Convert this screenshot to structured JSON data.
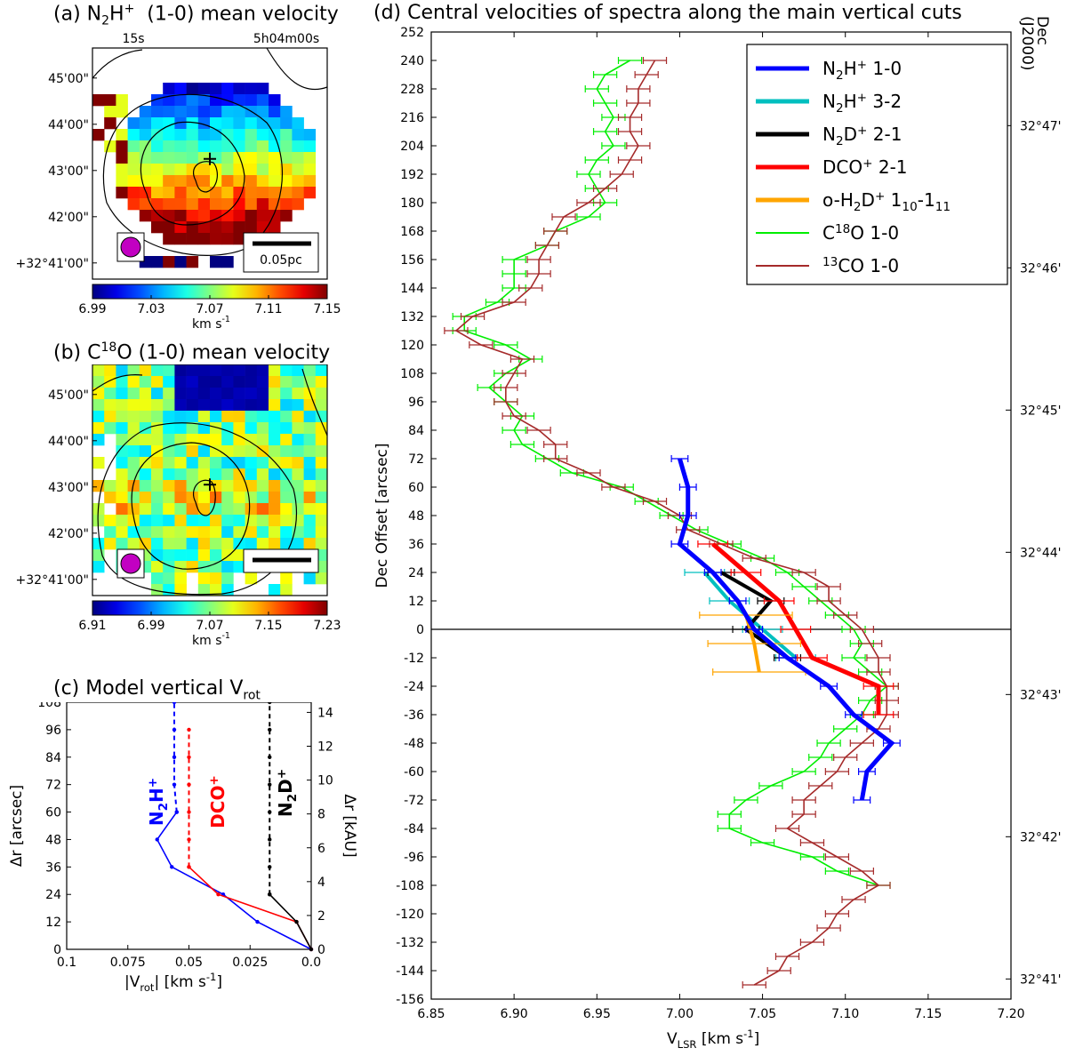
{
  "panel_a": {
    "title_prefix": "(a) N",
    "title_sub": "2",
    "title_mid": "H",
    "title_sup": "+",
    "title_suffix": "  (1-0) mean velocity",
    "ra_labels": [
      "15s",
      "5h04m00s"
    ],
    "dec_labels": [
      "45'00\"",
      "44'00\"",
      "43'00\"",
      "42'00\"",
      "+32°41'00\""
    ],
    "colorbar_ticks": [
      "6.99",
      "7.03",
      "7.07",
      "7.11",
      "7.15"
    ],
    "colorbar_unit": "km s",
    "colorbar_unit_sup": "-1",
    "scalebar_label": "0.05pc",
    "colors": {
      "beam": "#c200c2"
    }
  },
  "panel_b": {
    "title_prefix": "(b) C",
    "title_sup": "18",
    "title_suffix": "O (1-0) mean velocity",
    "dec_labels": [
      "45'00\"",
      "44'00\"",
      "43'00\"",
      "42'00\"",
      "+32°41'00\""
    ],
    "colorbar_ticks": [
      "6.91",
      "6.99",
      "7.07",
      "7.15",
      "7.23"
    ],
    "colorbar_unit": "km s",
    "colorbar_unit_sup": "-1"
  },
  "chart_data": [
    {
      "id": "c",
      "type": "line",
      "title": "(c) Model vertical V",
      "title_sub": "rot",
      "xlabel": "|V",
      "xlabel_sub": "rot",
      "xlabel_suffix": "| [km s",
      "xlabel_sup": "-1",
      "xlabel_end": "]",
      "ylabel": "Δr [arcsec]",
      "y2label": "Δr [kAU]",
      "xlim": [
        0.1,
        0.0
      ],
      "ylim": [
        0,
        108
      ],
      "xticks": [
        0.1,
        0.075,
        0.05,
        0.025,
        0.0
      ],
      "xtick_labels": [
        "0.1",
        "0.075",
        "0.05",
        "0.025",
        "0.0"
      ],
      "yticks": [
        0,
        12,
        24,
        36,
        48,
        60,
        72,
        84,
        96,
        108
      ],
      "y2ticks": [
        0,
        2,
        4,
        6,
        8,
        10,
        12,
        14
      ],
      "series": [
        {
          "name": "N2H+",
          "label_main": "N",
          "label_sub": "2",
          "label_h": "H",
          "label_sup": "+",
          "color": "#0000ff",
          "solid": [
            [
              0,
              0.0
            ],
            [
              12,
              0.022
            ],
            [
              24,
              0.036
            ],
            [
              36,
              0.057
            ],
            [
              48,
              0.063
            ],
            [
              60,
              0.055
            ]
          ],
          "dashed": [
            [
              60,
              0.055
            ],
            [
              72,
              0.056
            ],
            [
              84,
              0.056
            ],
            [
              96,
              0.056
            ],
            [
              108,
              0.056
            ]
          ]
        },
        {
          "name": "DCO+",
          "label_main": "DCO",
          "label_sup": "+",
          "color": "#ff0000",
          "solid": [
            [
              0,
              0.0
            ],
            [
              12,
              0.006
            ],
            [
              24,
              0.038
            ],
            [
              36,
              0.05
            ]
          ],
          "dashed": [
            [
              36,
              0.05
            ],
            [
              48,
              0.05
            ],
            [
              60,
              0.05
            ],
            [
              72,
              0.05
            ],
            [
              84,
              0.05
            ],
            [
              96,
              0.05
            ]
          ]
        },
        {
          "name": "N2D+",
          "label_main": "N",
          "label_sub": "2",
          "label_h": "D",
          "label_sup": "+",
          "color": "#000000",
          "solid": [
            [
              0,
              0.0
            ],
            [
              12,
              0.006
            ],
            [
              24,
              0.017
            ]
          ],
          "dashed": [
            [
              24,
              0.017
            ],
            [
              36,
              0.017
            ],
            [
              48,
              0.017
            ],
            [
              60,
              0.017
            ],
            [
              72,
              0.017
            ],
            [
              84,
              0.017
            ],
            [
              96,
              0.017
            ],
            [
              108,
              0.017
            ]
          ]
        }
      ]
    },
    {
      "id": "d",
      "type": "line",
      "title": "(d) Central velocities of spectra along the main vertical cuts",
      "xlabel": "V",
      "xlabel_sub": "LSR",
      "xlabel_suffix": " [km s",
      "xlabel_sup": "-1",
      "xlabel_end": "]",
      "ylabel": "Dec Offset [arcsec]",
      "y2label": "Dec",
      "y2label_2": "(J2000)",
      "xlim": [
        6.85,
        7.2
      ],
      "ylim": [
        -156,
        252
      ],
      "xticks": [
        6.85,
        6.9,
        6.95,
        7.0,
        7.05,
        7.1,
        7.15,
        7.2
      ],
      "xtick_labels": [
        "6.85",
        "6.90",
        "6.95",
        "7.00",
        "7.05",
        "7.10",
        "7.15",
        "7.20"
      ],
      "yticks": [
        -156,
        -144,
        -132,
        -120,
        -108,
        -96,
        -84,
        -72,
        -60,
        -48,
        -36,
        -24,
        -12,
        0,
        12,
        24,
        36,
        48,
        60,
        72,
        84,
        96,
        108,
        120,
        132,
        144,
        156,
        168,
        180,
        192,
        204,
        216,
        228,
        240,
        252
      ],
      "y2ticks": [
        {
          "label": "32°47'",
          "value": 212.5
        },
        {
          "label": "32°46'",
          "value": 152.5
        },
        {
          "label": "32°45'",
          "value": 92.5
        },
        {
          "label": "32°44'",
          "value": 32.5
        },
        {
          "label": "32°43'",
          "value": -27.5
        },
        {
          "label": "32°42'",
          "value": -87.5
        },
        {
          "label": "32°41'",
          "value": -147.5
        }
      ],
      "series": [
        {
          "name": "C18O 1-0",
          "legend_main": "C",
          "legend_sup": "18",
          "legend_rest": "O 1-0",
          "color": "#00ee00",
          "width": 1.6,
          "err": 0.007,
          "points": [
            [
              6.97,
              240
            ],
            [
              6.955,
              234
            ],
            [
              6.95,
              228
            ],
            [
              6.955,
              222
            ],
            [
              6.96,
              216
            ],
            [
              6.955,
              210
            ],
            [
              6.96,
              204
            ],
            [
              6.95,
              198
            ],
            [
              6.945,
              192
            ],
            [
              6.95,
              186
            ],
            [
              6.955,
              180
            ],
            [
              6.945,
              174
            ],
            [
              6.925,
              168
            ],
            [
              6.92,
              162
            ],
            [
              6.9,
              156
            ],
            [
              6.9,
              150
            ],
            [
              6.9,
              144
            ],
            [
              6.89,
              138
            ],
            [
              6.87,
              132
            ],
            [
              6.87,
              126
            ],
            [
              6.895,
              120
            ],
            [
              6.91,
              114
            ],
            [
              6.895,
              108
            ],
            [
              6.885,
              102
            ],
            [
              6.895,
              96
            ],
            [
              6.905,
              90
            ],
            [
              6.9,
              84
            ],
            [
              6.905,
              78
            ],
            [
              6.92,
              72
            ],
            [
              6.935,
              66
            ],
            [
              6.965,
              60
            ],
            [
              6.98,
              54
            ],
            [
              6.995,
              48
            ],
            [
              7.01,
              42
            ],
            [
              7.03,
              36
            ],
            [
              7.05,
              30
            ],
            [
              7.065,
              24
            ],
            [
              7.075,
              18
            ],
            [
              7.085,
              12
            ],
            [
              7.095,
              6
            ],
            [
              7.105,
              0
            ],
            [
              7.11,
              -6
            ],
            [
              7.105,
              -12
            ],
            [
              7.115,
              -18
            ],
            [
              7.125,
              -24
            ],
            [
              7.115,
              -30
            ],
            [
              7.11,
              -36
            ],
            [
              7.1,
              -42
            ],
            [
              7.09,
              -48
            ],
            [
              7.085,
              -54
            ],
            [
              7.075,
              -60
            ],
            [
              7.055,
              -66
            ],
            [
              7.04,
              -72
            ],
            [
              7.03,
              -78
            ],
            [
              7.03,
              -84
            ],
            [
              7.05,
              -90
            ],
            [
              7.08,
              -96
            ],
            [
              7.095,
              -102
            ],
            [
              7.12,
              -108
            ]
          ]
        },
        {
          "name": "13CO 1-0",
          "legend_main": "",
          "legend_sup": "13",
          "legend_rest": "CO 1-0",
          "color": "#a52a2a",
          "width": 1.6,
          "err": 0.007,
          "points": [
            [
              6.985,
              240
            ],
            [
              6.98,
              234
            ],
            [
              6.975,
              228
            ],
            [
              6.975,
              222
            ],
            [
              6.97,
              216
            ],
            [
              6.97,
              210
            ],
            [
              6.975,
              204
            ],
            [
              6.97,
              198
            ],
            [
              6.965,
              192
            ],
            [
              6.955,
              186
            ],
            [
              6.945,
              180
            ],
            [
              6.93,
              174
            ],
            [
              6.925,
              168
            ],
            [
              6.92,
              162
            ],
            [
              6.915,
              156
            ],
            [
              6.915,
              150
            ],
            [
              6.91,
              144
            ],
            [
              6.9,
              138
            ],
            [
              6.875,
              132
            ],
            [
              6.865,
              126
            ],
            [
              6.88,
              120
            ],
            [
              6.905,
              114
            ],
            [
              6.9,
              108
            ],
            [
              6.895,
              102
            ],
            [
              6.895,
              96
            ],
            [
              6.9,
              90
            ],
            [
              6.915,
              84
            ],
            [
              6.925,
              78
            ],
            [
              6.925,
              72
            ],
            [
              6.945,
              66
            ],
            [
              6.96,
              60
            ],
            [
              6.985,
              54
            ],
            [
              7.0,
              48
            ],
            [
              7.005,
              42
            ],
            [
              7.025,
              36
            ],
            [
              7.045,
              30
            ],
            [
              7.075,
              24
            ],
            [
              7.09,
              18
            ],
            [
              7.09,
              12
            ],
            [
              7.1,
              6
            ],
            [
              7.11,
              0
            ],
            [
              7.115,
              -6
            ],
            [
              7.12,
              -12
            ],
            [
              7.12,
              -18
            ],
            [
              7.125,
              -24
            ],
            [
              7.125,
              -30
            ],
            [
              7.125,
              -36
            ],
            [
              7.12,
              -42
            ],
            [
              7.11,
              -48
            ],
            [
              7.1,
              -54
            ],
            [
              7.095,
              -60
            ],
            [
              7.085,
              -66
            ],
            [
              7.075,
              -72
            ],
            [
              7.075,
              -78
            ],
            [
              7.065,
              -84
            ],
            [
              7.08,
              -90
            ],
            [
              7.095,
              -96
            ],
            [
              7.11,
              -102
            ],
            [
              7.12,
              -108
            ],
            [
              7.105,
              -114
            ],
            [
              7.095,
              -120
            ],
            [
              7.09,
              -126
            ],
            [
              7.08,
              -132
            ],
            [
              7.065,
              -138
            ],
            [
              7.06,
              -144
            ],
            [
              7.045,
              -150
            ]
          ]
        },
        {
          "name": "N2H+ 3-2",
          "legend_main": "N",
          "legend_sub": "2",
          "legend_h": "H",
          "legend_sup": "+",
          "legend_rest": " 3-2",
          "color": "#00bfbf",
          "width": 4,
          "err": 0.012,
          "points": [
            [
              7.015,
              24
            ],
            [
              7.03,
              12
            ],
            [
              7.05,
              0
            ],
            [
              7.07,
              -12
            ]
          ]
        },
        {
          "name": "N2D+ 2-1",
          "legend_main": "N",
          "legend_sub": "2",
          "legend_h": "D",
          "legend_sup": "+",
          "legend_rest": " 2-1",
          "color": "#000000",
          "width": 4,
          "err": 0.008,
          "points": [
            [
              7.025,
              24
            ],
            [
              7.055,
              12
            ],
            [
              7.04,
              0
            ],
            [
              7.065,
              -12
            ]
          ]
        },
        {
          "name": "DCO+ 2-1",
          "legend_main": "DCO",
          "legend_sup": "+",
          "legend_rest": " 2-1",
          "color": "#ff0000",
          "width": 5,
          "err": 0.009,
          "points": [
            [
              7.02,
              36
            ],
            [
              7.04,
              24
            ],
            [
              7.06,
              12
            ],
            [
              7.07,
              0
            ],
            [
              7.08,
              -12
            ],
            [
              7.12,
              -24
            ],
            [
              7.12,
              -36
            ]
          ]
        },
        {
          "name": "o-H2D+ 110-111",
          "legend_main": "o-H",
          "legend_sub": "2",
          "legend_h": "D",
          "legend_sup": "+",
          "legend_rest": " 1",
          "legend_sub2": "10",
          "legend_rest2": "-1",
          "legend_sub3": "11",
          "color": "#ffa500",
          "width": 4,
          "err": 0.028,
          "points": [
            [
              7.04,
              6
            ],
            [
              7.045,
              -6
            ],
            [
              7.048,
              -18
            ]
          ]
        },
        {
          "name": "N2H+ 1-0",
          "legend_main": "N",
          "legend_sub": "2",
          "legend_h": "H",
          "legend_sup": "+",
          "legend_rest": " 1-0",
          "color": "#0000ff",
          "width": 5,
          "err": 0.005,
          "points": [
            [
              7.0,
              72
            ],
            [
              7.005,
              60
            ],
            [
              7.005,
              48
            ],
            [
              7.0,
              36
            ],
            [
              7.02,
              24
            ],
            [
              7.035,
              12
            ],
            [
              7.045,
              0
            ],
            [
              7.065,
              -12
            ],
            [
              7.09,
              -24
            ],
            [
              7.105,
              -36
            ],
            [
              7.128,
              -48
            ],
            [
              7.113,
              -60
            ],
            [
              7.11,
              -72
            ]
          ]
        }
      ],
      "legend_order": [
        "N2H+ 1-0",
        "N2H+ 3-2",
        "N2D+ 2-1",
        "DCO+ 2-1",
        "o-H2D+ 110-111",
        "C18O 1-0",
        "13CO 1-0"
      ],
      "legend_position": "top-right"
    }
  ]
}
